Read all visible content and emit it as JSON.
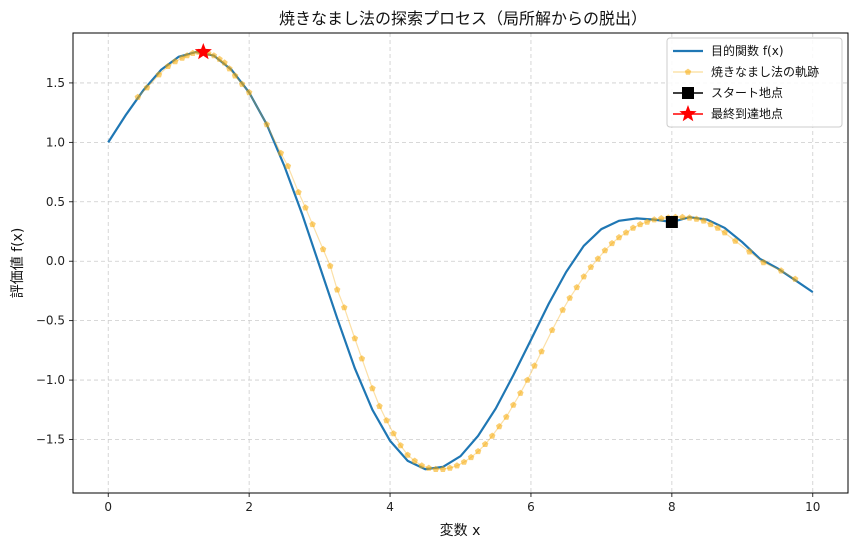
{
  "chart_data": {
    "type": "line",
    "title": "焼きなまし法の探索プロセス（局所解からの脱出）",
    "xlabel": "変数 x",
    "ylabel": "評価値 f(x)",
    "xlim": [
      -0.5,
      10.5
    ],
    "ylim": [
      -1.95,
      1.92
    ],
    "xticks": [
      0,
      2,
      4,
      6,
      8,
      10
    ],
    "yticks": [
      -1.5,
      -1.0,
      -0.5,
      0.0,
      0.5,
      1.0,
      1.5
    ],
    "xtick_labels": [
      "0",
      "2",
      "4",
      "6",
      "8",
      "10"
    ],
    "ytick_labels": [
      "−1.5",
      "−1.0",
      "−0.5",
      "0.0",
      "0.5",
      "1.0",
      "1.5"
    ],
    "grid": true,
    "legend_position": "top-right",
    "series": [
      {
        "name": "目的関数 f(x)",
        "style": "line",
        "color": "#1f77b4",
        "x": [
          0.0,
          0.25,
          0.5,
          0.75,
          1.0,
          1.25,
          1.5,
          1.75,
          2.0,
          2.25,
          2.5,
          2.75,
          3.0,
          3.25,
          3.5,
          3.75,
          4.0,
          4.25,
          4.5,
          4.75,
          5.0,
          5.25,
          5.5,
          5.75,
          6.0,
          6.25,
          6.5,
          6.75,
          7.0,
          7.25,
          7.5,
          7.75,
          8.0,
          8.25,
          8.5,
          8.75,
          9.0,
          9.25,
          9.5,
          9.75,
          10.0
        ],
        "y": [
          1.0,
          1.23,
          1.44,
          1.61,
          1.72,
          1.76,
          1.73,
          1.61,
          1.42,
          1.15,
          0.8,
          0.4,
          -0.04,
          -0.48,
          -0.9,
          -1.25,
          -1.51,
          -1.68,
          -1.75,
          -1.73,
          -1.64,
          -1.47,
          -1.24,
          -0.96,
          -0.66,
          -0.36,
          -0.09,
          0.13,
          0.27,
          0.34,
          0.36,
          0.35,
          0.33,
          0.37,
          0.35,
          0.28,
          0.16,
          0.02,
          -0.06,
          -0.16,
          -0.26
        ]
      },
      {
        "name": "焼きなまし法の軌跡",
        "style": "markers-line",
        "color": "#f5a700",
        "x": [
          0.42,
          0.55,
          0.72,
          0.85,
          0.95,
          1.05,
          1.12,
          1.2,
          1.28,
          1.35,
          1.42,
          1.5,
          1.58,
          1.65,
          1.72,
          1.8,
          1.9,
          2.0,
          2.25,
          2.45,
          2.55,
          2.7,
          2.8,
          2.9,
          3.05,
          3.15,
          3.25,
          3.35,
          3.5,
          3.6,
          3.75,
          3.85,
          3.95,
          4.05,
          4.15,
          4.25,
          4.35,
          4.45,
          4.55,
          4.65,
          4.75,
          4.85,
          4.95,
          5.05,
          5.15,
          5.25,
          5.35,
          5.45,
          5.55,
          5.65,
          5.75,
          5.85,
          5.95,
          6.05,
          6.15,
          6.3,
          6.45,
          6.55,
          6.65,
          6.75,
          6.85,
          6.95,
          7.05,
          7.15,
          7.25,
          7.35,
          7.45,
          7.55,
          7.65,
          7.75,
          7.85,
          7.95,
          8.05,
          8.15,
          8.25,
          8.35,
          8.45,
          8.55,
          8.65,
          8.75,
          8.9,
          9.1,
          9.3,
          9.55,
          9.75
        ],
        "y": [
          1.38,
          1.46,
          1.57,
          1.64,
          1.68,
          1.71,
          1.73,
          1.75,
          1.76,
          1.76,
          1.75,
          1.73,
          1.7,
          1.67,
          1.62,
          1.56,
          1.49,
          1.42,
          1.15,
          0.91,
          0.8,
          0.58,
          0.45,
          0.31,
          0.1,
          -0.04,
          -0.24,
          -0.39,
          -0.65,
          -0.82,
          -1.07,
          -1.22,
          -1.34,
          -1.45,
          -1.55,
          -1.63,
          -1.68,
          -1.72,
          -1.74,
          -1.75,
          -1.75,
          -1.74,
          -1.72,
          -1.69,
          -1.65,
          -1.6,
          -1.54,
          -1.47,
          -1.39,
          -1.31,
          -1.21,
          -1.11,
          -1.0,
          -0.88,
          -0.76,
          -0.58,
          -0.41,
          -0.31,
          -0.22,
          -0.13,
          -0.05,
          0.02,
          0.09,
          0.15,
          0.2,
          0.24,
          0.28,
          0.31,
          0.33,
          0.35,
          0.36,
          0.365,
          0.37,
          0.37,
          0.365,
          0.355,
          0.34,
          0.31,
          0.28,
          0.24,
          0.17,
          0.08,
          -0.01,
          -0.08,
          -0.15
        ]
      },
      {
        "name": "スタート地点",
        "style": "square-marker",
        "color": "#000000",
        "x": [
          8.0
        ],
        "y": [
          0.33
        ]
      },
      {
        "name": "最終到達地点",
        "style": "star-marker",
        "color": "#ff0000",
        "x": [
          1.35
        ],
        "y": [
          1.76
        ]
      }
    ]
  }
}
